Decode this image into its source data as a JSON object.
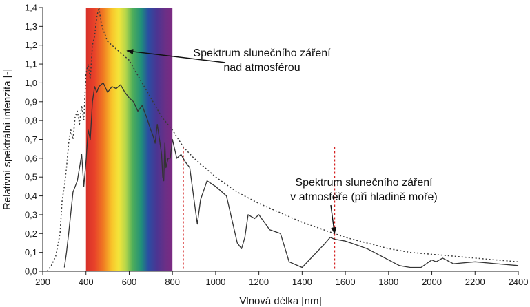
{
  "chart_data": {
    "type": "line",
    "xlabel": "Vlnová délka [nm]",
    "ylabel": "Relativní spektrální intenzita [-]",
    "xlim": [
      200,
      2400
    ],
    "ylim": [
      0,
      1.4
    ],
    "x_ticks": [
      "200",
      "400",
      "600",
      "800",
      "1000",
      "1200",
      "1400",
      "1600",
      "1800",
      "2000",
      "2200",
      "2400"
    ],
    "y_ticks": [
      "0,0",
      "0,1",
      "0,2",
      "0,3",
      "0,4",
      "0,5",
      "0,6",
      "0,7",
      "0,8",
      "0,9",
      "1,0",
      "1,1",
      "1,2",
      "1,3",
      "1,4"
    ],
    "grid": false,
    "visible_band": {
      "x_from": 400,
      "x_to": 800
    },
    "reference_lines": [
      850,
      1550
    ],
    "series": [
      {
        "name": "Spektrum slunečního záření nad atmosférou",
        "style": "dotted",
        "x": [
          220,
          240,
          260,
          280,
          290,
          300,
          310,
          320,
          330,
          340,
          350,
          360,
          370,
          380,
          390,
          400,
          410,
          420,
          430,
          440,
          450,
          460,
          470,
          480,
          490,
          500,
          520,
          540,
          560,
          580,
          600,
          620,
          650,
          700,
          750,
          800,
          850,
          900,
          1000,
          1100,
          1200,
          1300,
          1400,
          1500,
          1600,
          1700,
          1800,
          1900,
          2000,
          2100,
          2200,
          2300,
          2400
        ],
        "y": [
          0.0,
          0.03,
          0.08,
          0.2,
          0.38,
          0.45,
          0.55,
          0.68,
          0.75,
          0.7,
          0.82,
          0.85,
          0.78,
          0.88,
          0.8,
          1.05,
          1.1,
          1.02,
          1.2,
          1.25,
          1.35,
          1.4,
          1.32,
          1.28,
          1.25,
          1.22,
          1.2,
          1.18,
          1.16,
          1.14,
          1.12,
          1.08,
          1.02,
          0.92,
          0.82,
          0.75,
          0.66,
          0.6,
          0.5,
          0.42,
          0.36,
          0.31,
          0.26,
          0.22,
          0.18,
          0.15,
          0.12,
          0.1,
          0.09,
          0.08,
          0.07,
          0.06,
          0.05
        ]
      },
      {
        "name": "Spektrum slunečního záření v atmosféře (při hladině moře)",
        "style": "solid",
        "x": [
          300,
          310,
          320,
          340,
          360,
          380,
          390,
          400,
          410,
          420,
          430,
          440,
          450,
          460,
          480,
          500,
          520,
          540,
          560,
          580,
          600,
          620,
          640,
          660,
          680,
          700,
          710,
          720,
          730,
          740,
          750,
          755,
          760,
          765,
          770,
          780,
          790,
          800,
          820,
          840,
          860,
          880,
          900,
          915,
          930,
          960,
          1000,
          1050,
          1100,
          1120,
          1135,
          1150,
          1180,
          1200,
          1250,
          1300,
          1340,
          1360,
          1400,
          1450,
          1500,
          1530,
          1550,
          1600,
          1700,
          1800,
          1850,
          1900,
          1950,
          2000,
          2020,
          2050,
          2100,
          2200,
          2300,
          2400
        ],
        "y": [
          0.02,
          0.1,
          0.2,
          0.42,
          0.48,
          0.62,
          0.45,
          0.58,
          0.75,
          0.7,
          0.9,
          0.98,
          0.95,
          0.98,
          1.0,
          0.95,
          0.98,
          0.97,
          0.99,
          0.95,
          0.92,
          0.9,
          0.85,
          0.88,
          0.82,
          0.75,
          0.72,
          0.68,
          0.78,
          0.7,
          0.62,
          0.5,
          0.48,
          0.68,
          0.55,
          0.6,
          0.6,
          0.7,
          0.6,
          0.62,
          0.58,
          0.55,
          0.38,
          0.25,
          0.38,
          0.48,
          0.45,
          0.4,
          0.15,
          0.12,
          0.18,
          0.3,
          0.28,
          0.3,
          0.22,
          0.2,
          0.05,
          0.04,
          0.02,
          0.08,
          0.14,
          0.18,
          0.17,
          0.16,
          0.12,
          0.06,
          0.03,
          0.02,
          0.02,
          0.06,
          0.05,
          0.07,
          0.04,
          0.05,
          0.04,
          0.03
        ]
      }
    ],
    "annotations": [
      {
        "lines": [
          "Spektrum slunečního záření",
          "nad atmosférou"
        ],
        "target": [
          590,
          1.17
        ]
      },
      {
        "lines": [
          "Spektrum slunečního záření",
          "v atmosféře (při hladině moře)"
        ],
        "target": [
          1550,
          0.2
        ]
      }
    ]
  }
}
